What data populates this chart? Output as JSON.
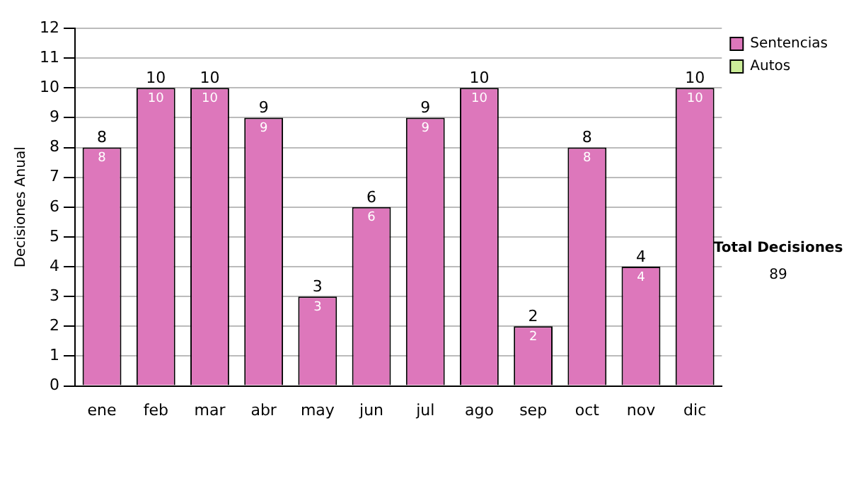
{
  "chart_data": {
    "type": "bar",
    "ylabel": "Decisiones Anual",
    "categories": [
      "ene",
      "feb",
      "mar",
      "abr",
      "may",
      "jun",
      "jul",
      "ago",
      "sep",
      "oct",
      "nov",
      "dic"
    ],
    "stacked": true,
    "series": [
      {
        "name": "Sentencias",
        "color": "#dd77bb",
        "values": [
          8,
          10,
          10,
          9,
          3,
          6,
          9,
          10,
          2,
          8,
          4,
          10
        ],
        "value_labels": [
          "8",
          "10",
          "10",
          "9",
          "3",
          "6",
          "9",
          "10",
          "2",
          "8",
          "4",
          "10"
        ]
      },
      {
        "name": "Autos",
        "color": "#ccee99",
        "values": [
          0,
          0,
          0,
          0,
          0,
          0,
          0,
          0,
          0,
          0,
          0,
          0
        ]
      }
    ],
    "totals": [
      "8",
      "10",
      "10",
      "9",
      "3",
      "6",
      "9",
      "10",
      "2",
      "8",
      "4",
      "10"
    ],
    "ylim": [
      0,
      12
    ],
    "yticks": [
      0,
      1,
      2,
      3,
      4,
      5,
      6,
      7,
      8,
      9,
      10,
      11,
      12
    ],
    "grid": "y",
    "legend": "right",
    "annotations": [
      "Total Decisiones",
      "89"
    ]
  }
}
